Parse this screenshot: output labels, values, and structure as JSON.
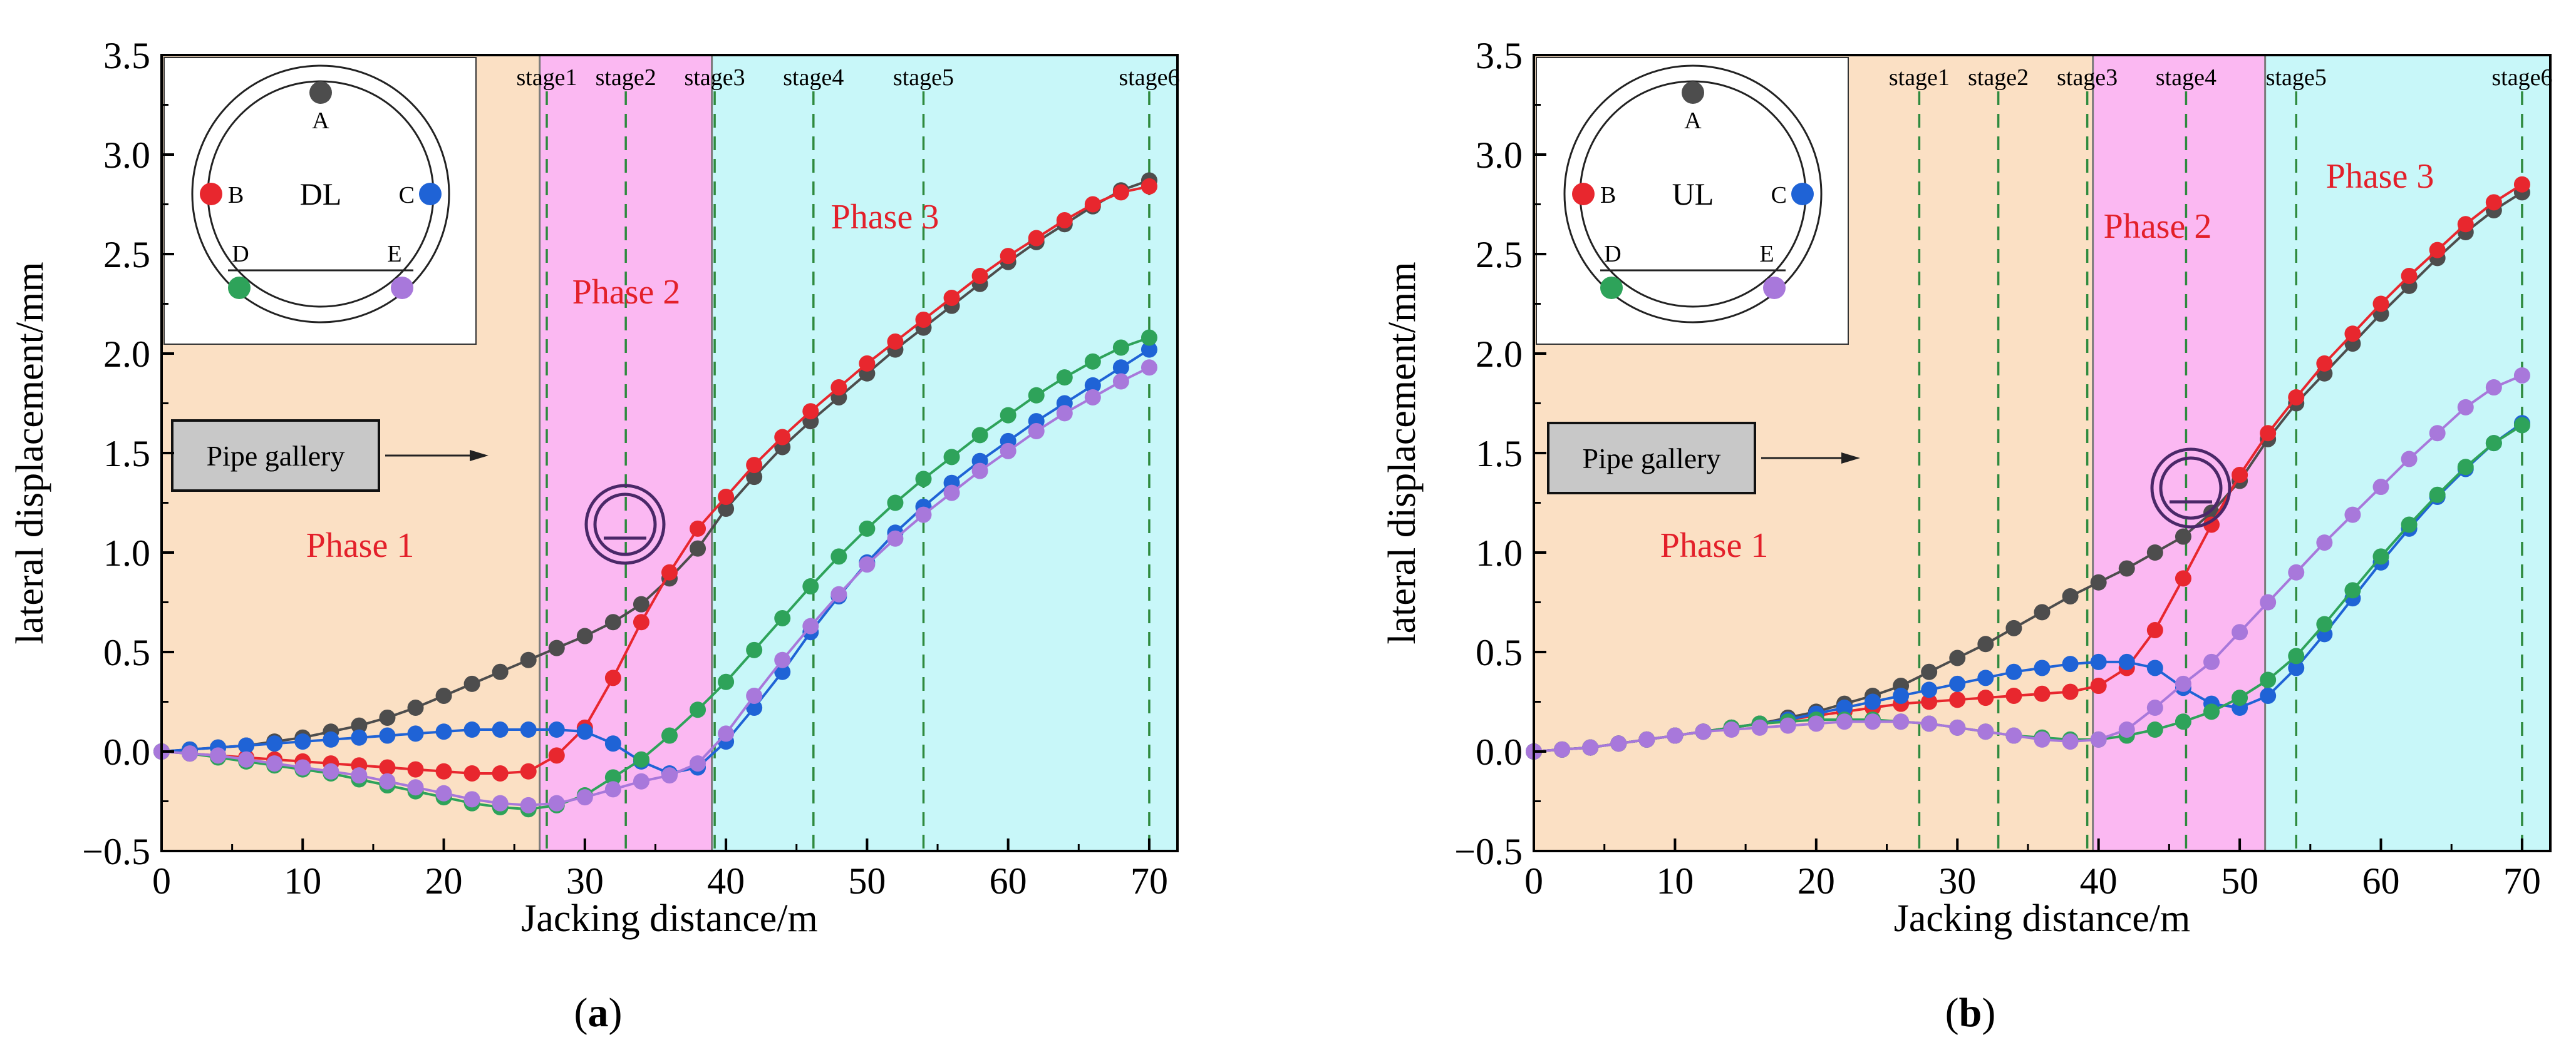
{
  "figure": {
    "panels": [
      {
        "id": "a",
        "caption": "(a)",
        "xlabel": "Jacking distance/m",
        "ylabel": "lateral displacement/mm",
        "diagram_label": "DL",
        "gallery_label": "Pipe gallery",
        "point_labels": [
          "A",
          "B",
          "C",
          "D",
          "E"
        ],
        "phase_labels": [
          "Phase 1",
          "Phase 2",
          "Phase 3"
        ],
        "stage_labels": [
          "stage1",
          "stage2",
          "stage3",
          "stage4",
          "stage5",
          "stage6"
        ]
      },
      {
        "id": "b",
        "caption": "(b)",
        "xlabel": "Jacking distance/m",
        "ylabel": "lateral displacement/mm",
        "diagram_label": "UL",
        "gallery_label": "Pipe gallery",
        "point_labels": [
          "A",
          "B",
          "C",
          "D",
          "E"
        ],
        "phase_labels": [
          "Phase 1",
          "Phase 2",
          "Phase 3"
        ],
        "stage_labels": [
          "stage1",
          "stage2",
          "stage3",
          "stage4",
          "stage5",
          "stage6"
        ]
      }
    ]
  },
  "colors": {
    "A": "#4d4d4d",
    "B": "#e8272e",
    "C": "#1f63d6",
    "D": "#2ea35a",
    "E": "#a878db",
    "phase1_band": "#fbe0c4",
    "phase2_band": "#fbb8f2",
    "phase3_band": "#c8f7f9",
    "phase_text": "#e3202a",
    "stage_line": "#2e8a3e"
  },
  "chart_data": [
    {
      "type": "line",
      "panel": "a",
      "xlabel": "Jacking distance/m",
      "ylabel": "lateral displacement/mm",
      "xlim": [
        0,
        72
      ],
      "ylim": [
        -0.5,
        3.5
      ],
      "xticks": [
        0,
        10,
        20,
        30,
        40,
        50,
        60,
        70
      ],
      "yticks": [
        -0.5,
        0.0,
        0.5,
        1.0,
        1.5,
        2.0,
        2.5,
        3.0,
        3.5
      ],
      "xtick_labels": [
        "0",
        "10",
        "20",
        "30",
        "40",
        "50",
        "60",
        "70"
      ],
      "ytick_labels": [
        "−0.5",
        "0.0",
        "0.5",
        "1.0",
        "1.5",
        "2.0",
        "2.5",
        "3.0",
        "3.5"
      ],
      "phases": [
        {
          "label": "Phase 1",
          "start": 0,
          "end": 26.8,
          "color": "#fbe0c4"
        },
        {
          "label": "Phase 2",
          "start": 26.8,
          "end": 39,
          "color": "#fbb8f2"
        },
        {
          "label": "Phase 3",
          "start": 39,
          "end": 72,
          "color": "#c8f7f9"
        }
      ],
      "stages": [
        {
          "label": "stage1",
          "x": 27.3
        },
        {
          "label": "stage2",
          "x": 32.9
        },
        {
          "label": "stage3",
          "x": 39.2
        },
        {
          "label": "stage4",
          "x": 46.2
        },
        {
          "label": "stage5",
          "x": 54
        },
        {
          "label": "stage6",
          "x": 70
        }
      ],
      "x": [
        0,
        2,
        4,
        6,
        8,
        10,
        12,
        14,
        16,
        18,
        20,
        22,
        24,
        26,
        28,
        30,
        32,
        34,
        36,
        38,
        40,
        42,
        44,
        46,
        48,
        50,
        52,
        54,
        56,
        58,
        60,
        62,
        64,
        66,
        68,
        70
      ],
      "series": [
        {
          "name": "A",
          "color": "#4d4d4d",
          "values": [
            0.0,
            0.01,
            0.02,
            0.03,
            0.05,
            0.07,
            0.1,
            0.13,
            0.17,
            0.22,
            0.28,
            0.34,
            0.4,
            0.46,
            0.52,
            0.58,
            0.65,
            0.74,
            0.87,
            1.02,
            1.22,
            1.38,
            1.53,
            1.66,
            1.78,
            1.9,
            2.02,
            2.13,
            2.24,
            2.35,
            2.46,
            2.56,
            2.65,
            2.74,
            2.82,
            2.87
          ]
        },
        {
          "name": "B",
          "color": "#e8272e",
          "values": [
            0.0,
            -0.01,
            -0.02,
            -0.03,
            -0.04,
            -0.05,
            -0.06,
            -0.07,
            -0.08,
            -0.09,
            -0.1,
            -0.11,
            -0.11,
            -0.1,
            -0.02,
            0.12,
            0.37,
            0.65,
            0.9,
            1.12,
            1.28,
            1.44,
            1.58,
            1.71,
            1.83,
            1.95,
            2.06,
            2.17,
            2.28,
            2.39,
            2.49,
            2.58,
            2.67,
            2.75,
            2.81,
            2.84
          ]
        },
        {
          "name": "C",
          "color": "#1f63d6",
          "values": [
            0.0,
            0.01,
            0.02,
            0.03,
            0.04,
            0.05,
            0.06,
            0.07,
            0.08,
            0.09,
            0.1,
            0.11,
            0.11,
            0.11,
            0.11,
            0.1,
            0.04,
            -0.05,
            -0.11,
            -0.08,
            0.05,
            0.22,
            0.4,
            0.6,
            0.78,
            0.95,
            1.1,
            1.23,
            1.35,
            1.46,
            1.56,
            1.66,
            1.75,
            1.84,
            1.93,
            2.02
          ]
        },
        {
          "name": "D",
          "color": "#2ea35a",
          "values": [
            0.0,
            -0.01,
            -0.03,
            -0.05,
            -0.07,
            -0.09,
            -0.11,
            -0.14,
            -0.17,
            -0.2,
            -0.23,
            -0.26,
            -0.28,
            -0.29,
            -0.27,
            -0.22,
            -0.13,
            -0.04,
            0.08,
            0.21,
            0.35,
            0.51,
            0.67,
            0.83,
            0.98,
            1.12,
            1.25,
            1.37,
            1.48,
            1.59,
            1.69,
            1.79,
            1.88,
            1.96,
            2.03,
            2.08
          ]
        },
        {
          "name": "E",
          "color": "#a878db",
          "values": [
            0.0,
            -0.01,
            -0.02,
            -0.04,
            -0.06,
            -0.08,
            -0.1,
            -0.12,
            -0.15,
            -0.18,
            -0.21,
            -0.24,
            -0.26,
            -0.27,
            -0.26,
            -0.23,
            -0.19,
            -0.15,
            -0.12,
            -0.06,
            0.09,
            0.28,
            0.46,
            0.63,
            0.79,
            0.94,
            1.07,
            1.19,
            1.3,
            1.41,
            1.51,
            1.61,
            1.7,
            1.78,
            1.86,
            1.93
          ]
        }
      ]
    },
    {
      "type": "line",
      "panel": "b",
      "xlabel": "Jacking distance/m",
      "ylabel": "lateral displacement/mm",
      "xlim": [
        0,
        72
      ],
      "ylim": [
        -0.5,
        3.5
      ],
      "xticks": [
        0,
        10,
        20,
        30,
        40,
        50,
        60,
        70
      ],
      "yticks": [
        -0.5,
        0.0,
        0.5,
        1.0,
        1.5,
        2.0,
        2.5,
        3.0,
        3.5
      ],
      "xtick_labels": [
        "0",
        "10",
        "20",
        "30",
        "40",
        "50",
        "60",
        "70"
      ],
      "ytick_labels": [
        "−0.5",
        "0.0",
        "0.5",
        "1.0",
        "1.5",
        "2.0",
        "2.5",
        "3.0",
        "3.5"
      ],
      "phases": [
        {
          "label": "Phase 1",
          "start": 0,
          "end": 39.6,
          "color": "#fbe0c4"
        },
        {
          "label": "Phase 2",
          "start": 39.6,
          "end": 51.8,
          "color": "#fbb8f2"
        },
        {
          "label": "Phase 3",
          "start": 51.8,
          "end": 72,
          "color": "#c8f7f9"
        }
      ],
      "stages": [
        {
          "label": "stage1",
          "x": 27.3
        },
        {
          "label": "stage2",
          "x": 32.9
        },
        {
          "label": "stage3",
          "x": 39.2
        },
        {
          "label": "stage4",
          "x": 46.2
        },
        {
          "label": "stage5",
          "x": 54
        },
        {
          "label": "stage6",
          "x": 70
        }
      ],
      "x": [
        0,
        2,
        4,
        6,
        8,
        10,
        12,
        14,
        16,
        18,
        20,
        22,
        24,
        26,
        28,
        30,
        32,
        34,
        36,
        38,
        40,
        42,
        44,
        46,
        48,
        50,
        52,
        54,
        56,
        58,
        60,
        62,
        64,
        66,
        68,
        70
      ],
      "series": [
        {
          "name": "A",
          "color": "#4d4d4d",
          "values": [
            0.0,
            0.01,
            0.02,
            0.04,
            0.06,
            0.08,
            0.1,
            0.12,
            0.14,
            0.17,
            0.2,
            0.24,
            0.28,
            0.33,
            0.4,
            0.47,
            0.54,
            0.62,
            0.7,
            0.78,
            0.85,
            0.92,
            1.0,
            1.08,
            1.2,
            1.36,
            1.57,
            1.75,
            1.9,
            2.05,
            2.2,
            2.34,
            2.48,
            2.61,
            2.72,
            2.81
          ]
        },
        {
          "name": "B",
          "color": "#e8272e",
          "values": [
            0.0,
            0.01,
            0.02,
            0.04,
            0.06,
            0.08,
            0.1,
            0.12,
            0.14,
            0.16,
            0.18,
            0.2,
            0.22,
            0.24,
            0.25,
            0.26,
            0.27,
            0.28,
            0.29,
            0.3,
            0.33,
            0.42,
            0.61,
            0.87,
            1.14,
            1.39,
            1.6,
            1.78,
            1.95,
            2.1,
            2.25,
            2.39,
            2.52,
            2.65,
            2.76,
            2.85
          ]
        },
        {
          "name": "C",
          "color": "#1f63d6",
          "values": [
            0.0,
            0.01,
            0.02,
            0.04,
            0.06,
            0.08,
            0.1,
            0.12,
            0.14,
            0.16,
            0.19,
            0.22,
            0.25,
            0.28,
            0.31,
            0.34,
            0.37,
            0.4,
            0.42,
            0.44,
            0.45,
            0.45,
            0.42,
            0.32,
            0.24,
            0.22,
            0.28,
            0.42,
            0.59,
            0.77,
            0.95,
            1.12,
            1.28,
            1.42,
            1.55,
            1.65
          ]
        },
        {
          "name": "D",
          "color": "#2ea35a",
          "values": [
            0.0,
            0.01,
            0.02,
            0.04,
            0.06,
            0.08,
            0.1,
            0.12,
            0.14,
            0.15,
            0.16,
            0.16,
            0.16,
            0.15,
            0.14,
            0.12,
            0.1,
            0.08,
            0.07,
            0.06,
            0.06,
            0.08,
            0.11,
            0.15,
            0.2,
            0.27,
            0.36,
            0.48,
            0.64,
            0.81,
            0.98,
            1.14,
            1.29,
            1.43,
            1.55,
            1.64
          ]
        },
        {
          "name": "E",
          "color": "#a878db",
          "values": [
            0.0,
            0.01,
            0.02,
            0.04,
            0.06,
            0.08,
            0.1,
            0.11,
            0.12,
            0.13,
            0.14,
            0.15,
            0.15,
            0.15,
            0.14,
            0.12,
            0.1,
            0.08,
            0.06,
            0.05,
            0.06,
            0.11,
            0.22,
            0.34,
            0.45,
            0.6,
            0.75,
            0.9,
            1.05,
            1.19,
            1.33,
            1.47,
            1.6,
            1.73,
            1.83,
            1.89
          ]
        }
      ]
    }
  ]
}
